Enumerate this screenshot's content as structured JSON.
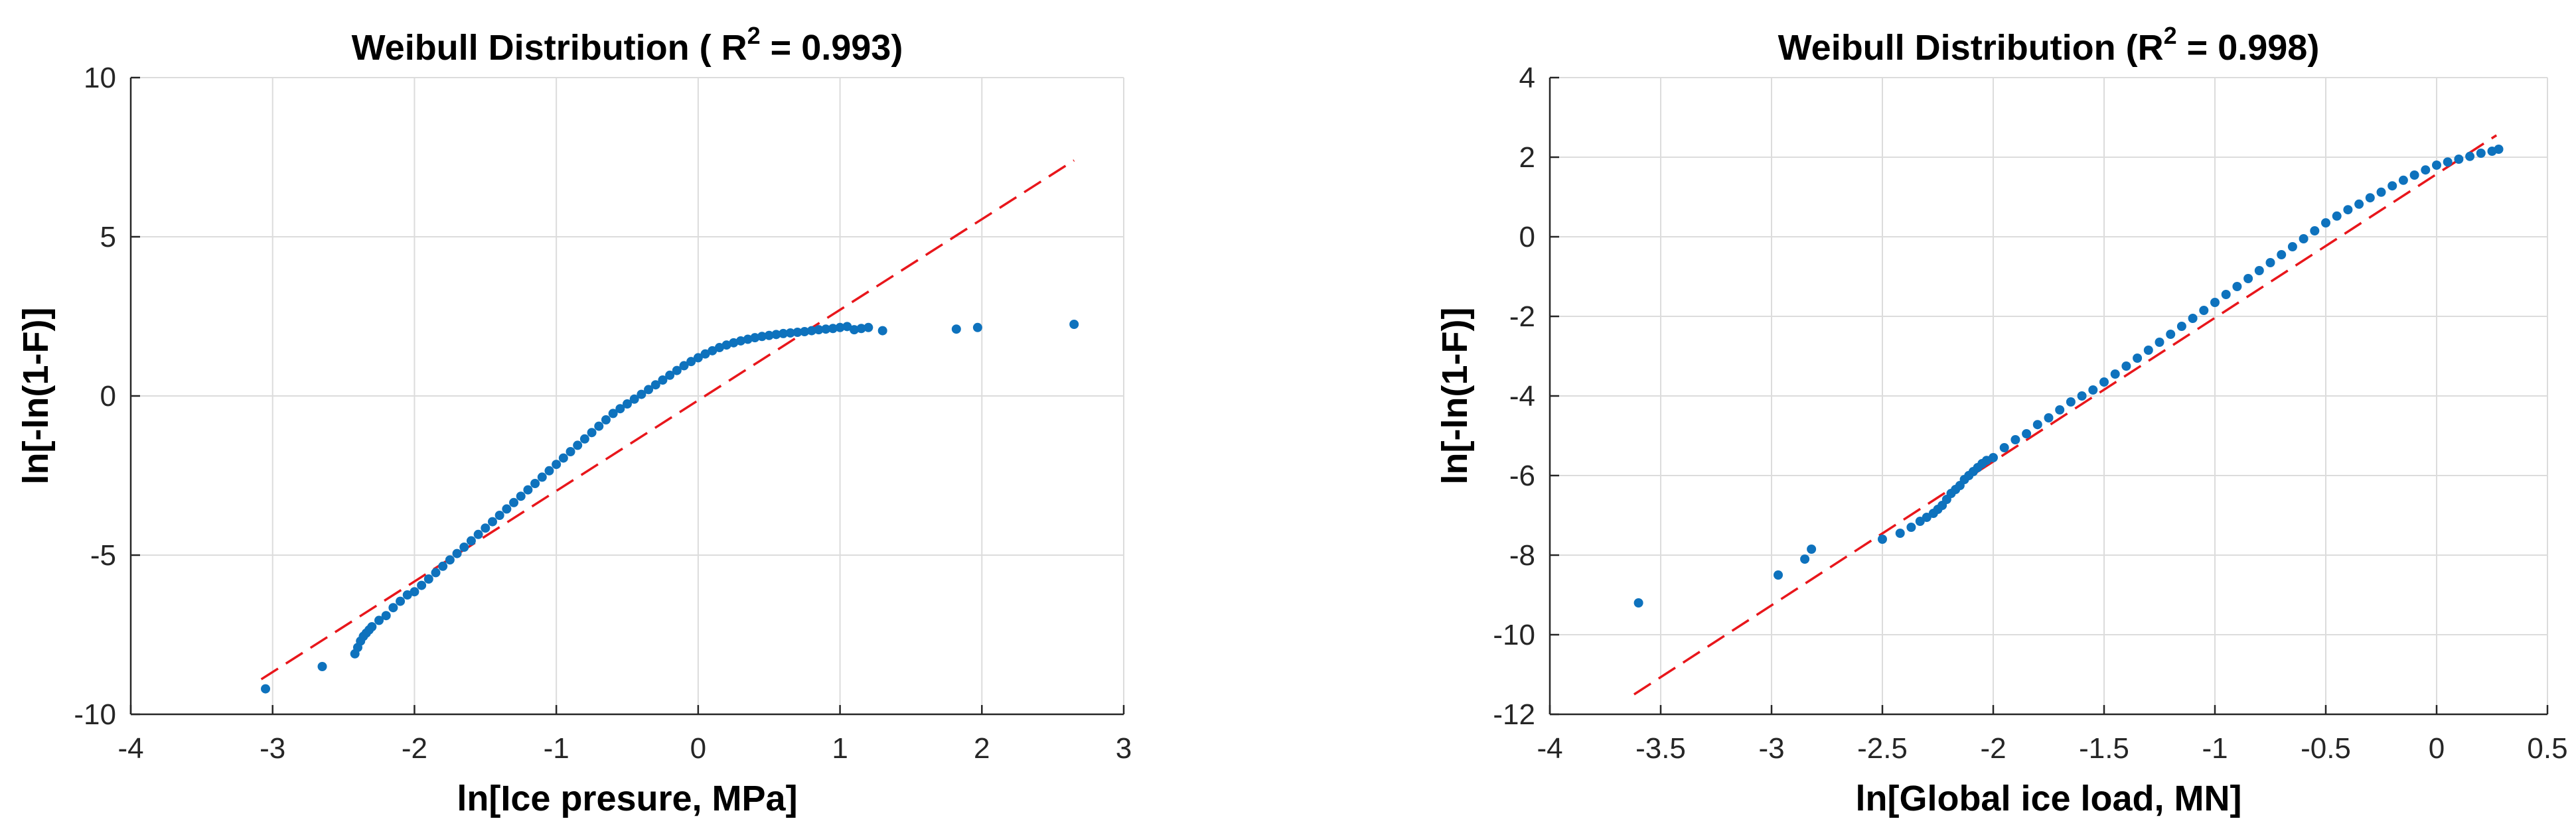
{
  "chart_data": [
    {
      "type": "scatter",
      "title": "Weibull Distribution ( R",
      "title_sup": "2",
      "title_tail": " = 0.993)",
      "xlabel": "ln[Ice presure, MPa]",
      "ylabel": "ln[-ln(1-F)]",
      "xlim": [
        -4,
        3
      ],
      "ylim": [
        -10,
        10
      ],
      "xticks": [
        -4,
        -3,
        -2,
        -1,
        0,
        1,
        2,
        3
      ],
      "yticks": [
        -10,
        -5,
        0,
        5,
        10
      ],
      "grid": true,
      "colors": {
        "points": "#0e72bd",
        "fit": "#e8161b"
      },
      "fit_line": {
        "x": [
          -3.08,
          2.65
        ],
        "y": [
          -8.9,
          7.4
        ]
      },
      "points": {
        "x": [
          -3.05,
          -2.65,
          -2.42,
          -2.4,
          -2.38,
          -2.36,
          -2.34,
          -2.32,
          -2.3,
          -2.25,
          -2.2,
          -2.15,
          -2.1,
          -2.05,
          -2.0,
          -1.95,
          -1.9,
          -1.85,
          -1.8,
          -1.75,
          -1.7,
          -1.65,
          -1.6,
          -1.55,
          -1.5,
          -1.45,
          -1.4,
          -1.35,
          -1.3,
          -1.25,
          -1.2,
          -1.15,
          -1.1,
          -1.05,
          -1.0,
          -0.95,
          -0.9,
          -0.85,
          -0.8,
          -0.75,
          -0.7,
          -0.65,
          -0.6,
          -0.55,
          -0.5,
          -0.45,
          -0.4,
          -0.35,
          -0.3,
          -0.25,
          -0.2,
          -0.15,
          -0.1,
          -0.05,
          0.0,
          0.05,
          0.1,
          0.15,
          0.2,
          0.25,
          0.3,
          0.35,
          0.4,
          0.45,
          0.5,
          0.55,
          0.6,
          0.65,
          0.7,
          0.75,
          0.8,
          0.85,
          0.9,
          0.95,
          1.0,
          1.05,
          1.1,
          1.15,
          1.2,
          1.3,
          1.82,
          1.97,
          2.65
        ],
        "y": [
          -9.2,
          -8.5,
          -8.1,
          -7.9,
          -7.7,
          -7.55,
          -7.45,
          -7.35,
          -7.25,
          -7.05,
          -6.9,
          -6.65,
          -6.45,
          -6.25,
          -6.15,
          -5.95,
          -5.75,
          -5.55,
          -5.35,
          -5.15,
          -4.95,
          -4.75,
          -4.55,
          -4.35,
          -4.15,
          -3.95,
          -3.75,
          -3.55,
          -3.35,
          -3.15,
          -2.95,
          -2.75,
          -2.55,
          -2.35,
          -2.15,
          -1.95,
          -1.75,
          -1.55,
          -1.35,
          -1.15,
          -0.95,
          -0.75,
          -0.55,
          -0.4,
          -0.25,
          -0.1,
          0.05,
          0.2,
          0.35,
          0.5,
          0.65,
          0.8,
          0.95,
          1.08,
          1.2,
          1.32,
          1.42,
          1.52,
          1.6,
          1.67,
          1.73,
          1.78,
          1.83,
          1.87,
          1.9,
          1.93,
          1.96,
          1.98,
          2.0,
          2.02,
          2.05,
          2.08,
          2.1,
          2.12,
          2.15,
          2.18,
          2.08,
          2.12,
          2.15,
          2.05,
          2.1,
          2.15,
          2.25
        ]
      }
    },
    {
      "type": "scatter",
      "title": "Weibull Distribution (R",
      "title_sup": "2",
      "title_tail": " = 0.998)",
      "xlabel": "ln[Global ice load, MN]",
      "ylabel": "ln[-ln(1-F)]",
      "xlim": [
        -4,
        0.5
      ],
      "ylim": [
        -12,
        4
      ],
      "xticks": [
        -4,
        -3.5,
        -3,
        -2.5,
        -2,
        -1.5,
        -1,
        -0.5,
        0,
        0.5
      ],
      "yticks": [
        -12,
        -10,
        -8,
        -6,
        -4,
        -2,
        0,
        2,
        4
      ],
      "grid": true,
      "colors": {
        "points": "#0e72bd",
        "fit": "#e8161b"
      },
      "fit_line": {
        "x": [
          -3.62,
          0.27
        ],
        "y": [
          -11.5,
          2.55
        ]
      },
      "points": {
        "x": [
          -3.6,
          -2.97,
          -2.85,
          -2.82,
          -2.5,
          -2.42,
          -2.37,
          -2.33,
          -2.3,
          -2.27,
          -2.25,
          -2.23,
          -2.21,
          -2.19,
          -2.17,
          -2.15,
          -2.13,
          -2.11,
          -2.09,
          -2.07,
          -2.05,
          -2.03,
          -2.0,
          -1.95,
          -1.9,
          -1.85,
          -1.8,
          -1.75,
          -1.7,
          -1.65,
          -1.6,
          -1.55,
          -1.5,
          -1.45,
          -1.4,
          -1.35,
          -1.3,
          -1.25,
          -1.2,
          -1.15,
          -1.1,
          -1.05,
          -1.0,
          -0.95,
          -0.9,
          -0.85,
          -0.8,
          -0.75,
          -0.7,
          -0.65,
          -0.6,
          -0.55,
          -0.5,
          -0.45,
          -0.4,
          -0.35,
          -0.3,
          -0.25,
          -0.2,
          -0.15,
          -0.1,
          -0.05,
          0.0,
          0.05,
          0.1,
          0.15,
          0.2,
          0.25,
          0.28
        ],
        "y": [
          -9.2,
          -8.5,
          -8.1,
          -7.85,
          -7.6,
          -7.45,
          -7.3,
          -7.15,
          -7.05,
          -6.95,
          -6.85,
          -6.75,
          -6.6,
          -6.45,
          -6.35,
          -6.25,
          -6.1,
          -6.0,
          -5.9,
          -5.8,
          -5.7,
          -5.62,
          -5.55,
          -5.3,
          -5.1,
          -4.95,
          -4.72,
          -4.55,
          -4.35,
          -4.15,
          -4.0,
          -3.85,
          -3.65,
          -3.45,
          -3.25,
          -3.05,
          -2.85,
          -2.65,
          -2.45,
          -2.25,
          -2.05,
          -1.85,
          -1.65,
          -1.45,
          -1.25,
          -1.05,
          -0.85,
          -0.65,
          -0.45,
          -0.25,
          -0.05,
          0.15,
          0.35,
          0.52,
          0.68,
          0.82,
          0.98,
          1.12,
          1.28,
          1.42,
          1.55,
          1.68,
          1.8,
          1.88,
          1.95,
          2.02,
          2.1,
          2.15,
          2.2
        ]
      }
    }
  ]
}
